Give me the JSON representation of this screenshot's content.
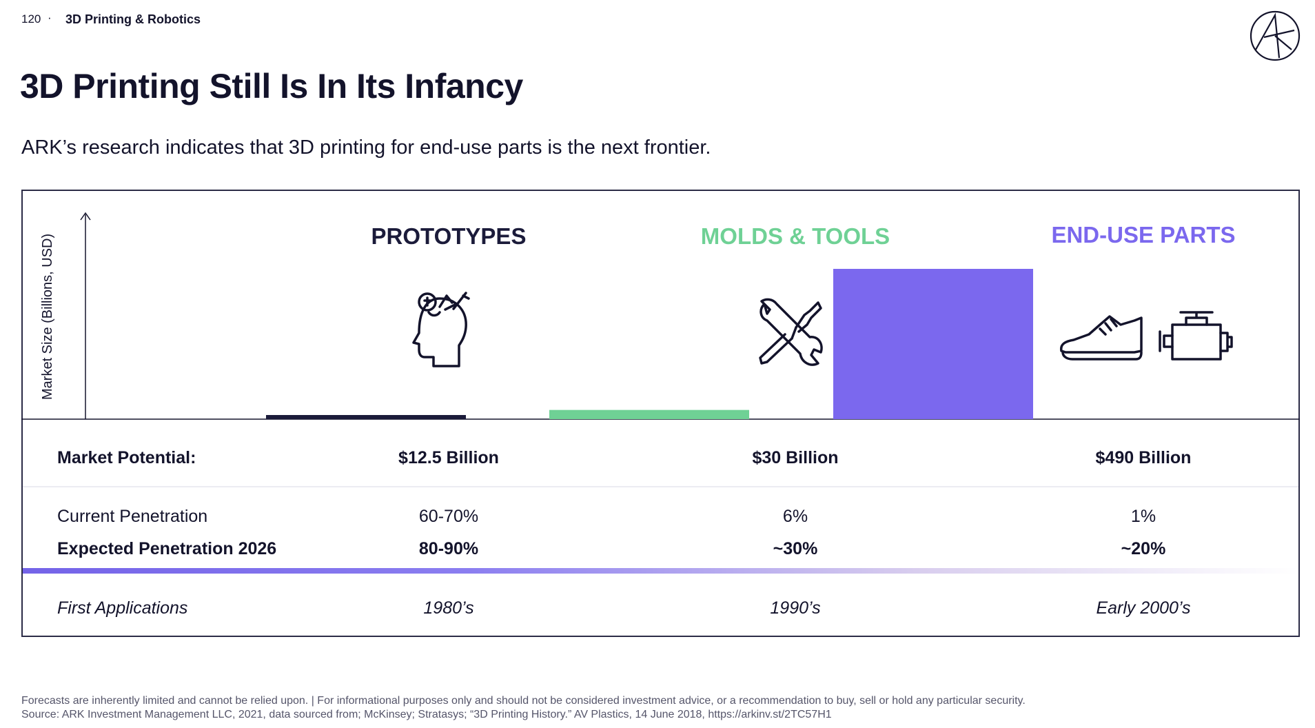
{
  "header": {
    "page_number": "120",
    "separator": "·",
    "section": "3D Printing & Robotics"
  },
  "title": "3D Printing Still Is In Its Infancy",
  "subtitle": "ARK’s research indicates that 3D printing for end-use parts is the next frontier.",
  "chart_data": {
    "type": "bar",
    "ylabel": "Market Size (Billions, USD)",
    "categories": [
      "PROTOTYPES",
      "MOLDS & TOOLS",
      "END-USE PARTS"
    ],
    "values": [
      12.5,
      30,
      490
    ],
    "colors": [
      "#1b1b3a",
      "#6fd195",
      "#7b68ee"
    ],
    "icons": [
      [
        "head-gears-icon"
      ],
      [
        "wrench-screwdriver-icon"
      ],
      [
        "sneaker-icon",
        "engine-icon"
      ]
    ]
  },
  "table": {
    "rows": [
      {
        "label": "Market Potential:",
        "values": [
          "$12.5 Billion",
          "$30 Billion",
          "$490 Billion"
        ]
      },
      {
        "label": "Current Penetration",
        "values": [
          "60-70%",
          "6%",
          "1%"
        ]
      },
      {
        "label": "Expected Penetration 2026",
        "values": [
          "80-90%",
          "~30%",
          "~20%"
        ]
      },
      {
        "label": "First Applications",
        "values": [
          "1980’s",
          "1990’s",
          "Early 2000’s"
        ]
      }
    ]
  },
  "footnotes": [
    "Forecasts are inherently limited and cannot be relied upon. | For informational purposes only and should not be considered investment advice, or a recommendation to buy, sell or hold any particular security.",
    "Source: ARK Investment Management LLC, 2021, data sourced from; McKinsey; Stratasys; “3D Printing History.” AV Plastics, 14 June 2018, https://arkinv.st/2TC57H1"
  ]
}
